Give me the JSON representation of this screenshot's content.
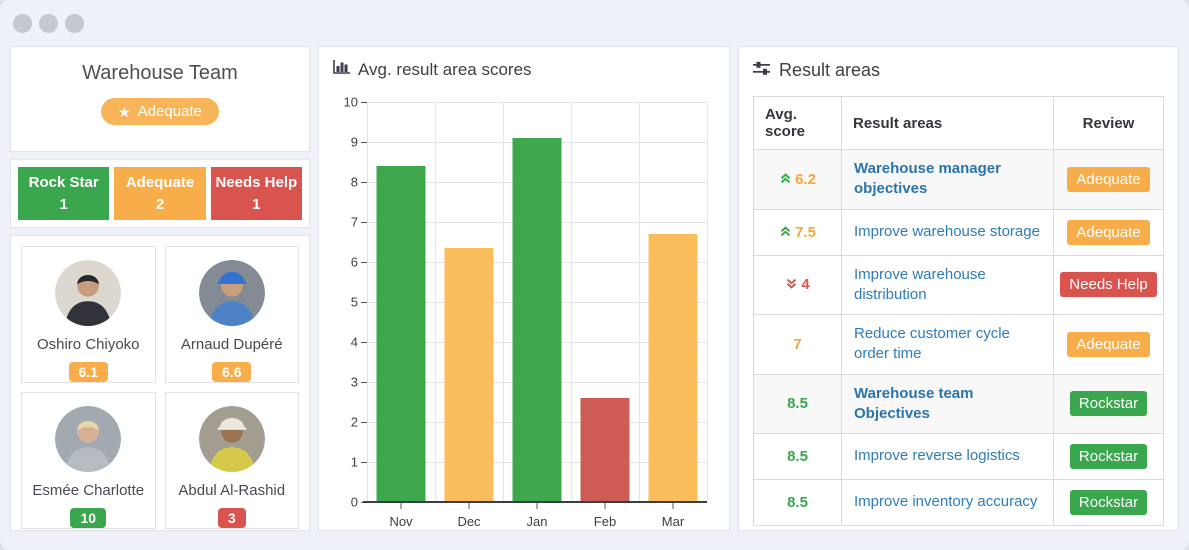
{
  "window": {
    "controls_count": 3
  },
  "icons": {
    "window_dot": "window-control-dot",
    "star": "star-icon",
    "chart_title": "bar-chart-icon",
    "results_title": "sliders-icon",
    "trend_up": "chevron-double-up-icon",
    "trend_down": "chevron-double-down-icon"
  },
  "colors": {
    "page_bg": "#eef1f8",
    "green": "#3aa64d",
    "orange": "#f7ae4a",
    "red": "#d9534f",
    "bar_green": "#3fa84d",
    "bar_orange": "#fbbd5c",
    "bar_red": "#cd5c54",
    "score_orange_text": "#f0a73c",
    "score_red_text": "#e2574b",
    "score_green_text": "#3aa64d",
    "link_blue": "#2e7cb8"
  },
  "team_panel": {
    "title": "Warehouse Team",
    "overall_badge": {
      "label": "Adequate",
      "color": "#f8b459",
      "star": "★"
    },
    "summary_buttons": [
      {
        "label": "Rock Star",
        "count": "1",
        "color": "#3aa64d"
      },
      {
        "label": "Adequate",
        "count": "2",
        "color": "#f7ae4a"
      },
      {
        "label": "Needs Help",
        "count": "1",
        "color": "#d9534f"
      }
    ],
    "members": [
      {
        "name": "Oshiro Chiyoko",
        "score": "6.1",
        "score_color": "#f7ae4a",
        "avatar_colors": {
          "bg": "#ddd8cf",
          "skin": "#c69d7d",
          "shirt": "#32333a",
          "hair": "#26262b",
          "hat": null
        }
      },
      {
        "name": "Arnaud Dupéré",
        "score": "6.6",
        "score_color": "#f7ae4a",
        "avatar_colors": {
          "bg": "#848b94",
          "skin": "#c9a07e",
          "shirt": "#4d82c4",
          "hair": null,
          "hat": "#3272cf"
        }
      },
      {
        "name": "Esmée Charlotte",
        "score": "10",
        "score_color": "#3aa64d",
        "avatar_colors": {
          "bg": "#a3a9b1",
          "skin": "#d8b294",
          "shirt": "#b6bac1",
          "hair": "#e8d8a8",
          "hat": null
        }
      },
      {
        "name": "Abdul Al-Rashid",
        "score": "3",
        "score_color": "#d9534f",
        "avatar_colors": {
          "bg": "#a29d90",
          "skin": "#9a7452",
          "shirt": "#d6c84b",
          "hair": "#33291f",
          "hat": "#eae6dc"
        }
      }
    ]
  },
  "chart_panel": {
    "title": "Avg. result area scores"
  },
  "chart_data": {
    "type": "bar",
    "title": "Avg. result area scores",
    "categories": [
      "Nov",
      "Dec",
      "Jan",
      "Feb",
      "Mar"
    ],
    "values": [
      8.4,
      6.35,
      9.1,
      2.6,
      6.7
    ],
    "bar_colors": [
      "#3fa84d",
      "#fbbd5c",
      "#3fa84d",
      "#cd5c54",
      "#fbbd5c"
    ],
    "xlabel": "",
    "ylabel": "",
    "ylim": [
      0,
      10
    ],
    "yticks": [
      0,
      1,
      2,
      3,
      4,
      5,
      6,
      7,
      8,
      9,
      10
    ],
    "grid": true,
    "legend": "none"
  },
  "result_areas_panel": {
    "title": "Result areas",
    "table": {
      "headers": [
        "Avg. score",
        "Result areas",
        "Review"
      ],
      "rows": [
        {
          "trend": "up",
          "score": "6.2",
          "score_color": "#f0a73c",
          "area": "Warehouse manager objectives",
          "bold": true,
          "shaded": true,
          "review": "Adequate",
          "review_color": "#f7ae4a"
        },
        {
          "trend": "up",
          "score": "7.5",
          "score_color": "#f0a73c",
          "area": "Improve warehouse storage",
          "bold": false,
          "shaded": false,
          "review": "Adequate",
          "review_color": "#f7ae4a"
        },
        {
          "trend": "down",
          "score": "4",
          "score_color": "#e2574b",
          "area": "Improve warehouse distribution",
          "bold": false,
          "shaded": false,
          "review": "Needs Help",
          "review_color": "#d9534f"
        },
        {
          "trend": null,
          "score": "7",
          "score_color": "#f0a73c",
          "area": "Reduce customer cycle order time",
          "bold": false,
          "shaded": false,
          "review": "Adequate",
          "review_color": "#f7ae4a"
        },
        {
          "trend": null,
          "score": "8.5",
          "score_color": "#3aa64d",
          "area": "Warehouse team Objectives",
          "bold": true,
          "shaded": true,
          "review": "Rockstar",
          "review_color": "#3aa64d"
        },
        {
          "trend": null,
          "score": "8.5",
          "score_color": "#3aa64d",
          "area": "Improve reverse logistics",
          "bold": false,
          "shaded": false,
          "review": "Rockstar",
          "review_color": "#3aa64d"
        },
        {
          "trend": null,
          "score": "8.5",
          "score_color": "#3aa64d",
          "area": "Improve inventory accuracy",
          "bold": false,
          "shaded": false,
          "review": "Rockstar",
          "review_color": "#3aa64d"
        }
      ]
    }
  }
}
